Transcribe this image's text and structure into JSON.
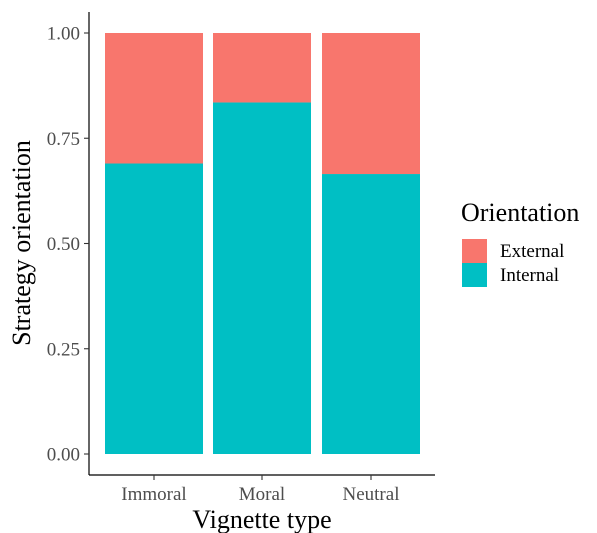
{
  "chart_data": {
    "type": "bar",
    "stacked": true,
    "categories": [
      "Immoral",
      "Moral",
      "Neutral"
    ],
    "series": [
      {
        "name": "Internal",
        "color": "#00BFC4",
        "values": [
          0.69,
          0.835,
          0.665
        ]
      },
      {
        "name": "External",
        "color": "#F8766D",
        "values": [
          0.31,
          0.165,
          0.335
        ]
      }
    ],
    "xlabel": "Vignette type",
    "ylabel": "Strategy orientation",
    "ylim": [
      0,
      1
    ],
    "yticks": [
      "0.00",
      "0.25",
      "0.50",
      "0.75",
      "1.00"
    ],
    "ytick_values": [
      0,
      0.25,
      0.5,
      0.75,
      1
    ],
    "grid": false,
    "legend": {
      "title": "Orientation",
      "placement": "right",
      "items": [
        {
          "label": "External",
          "color": "#F8766D"
        },
        {
          "label": "Internal",
          "color": "#00BFC4"
        }
      ]
    }
  }
}
